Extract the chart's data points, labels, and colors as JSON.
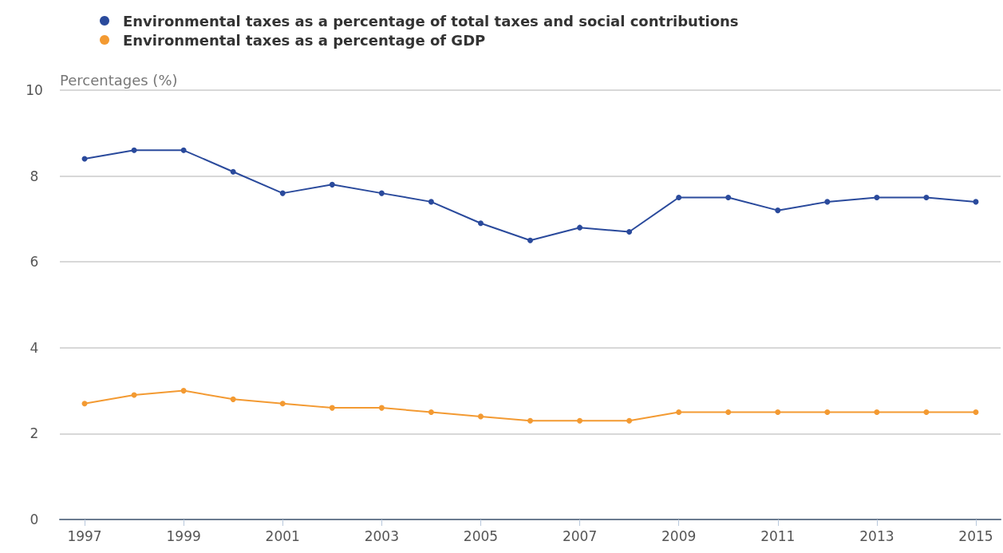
{
  "chart_data": {
    "type": "line",
    "ylabel": "Percentages (%)",
    "categories": [
      "1997",
      null,
      "1999",
      null,
      "2001",
      null,
      "2003",
      null,
      "2005",
      null,
      "2007",
      null,
      "2009",
      null,
      "2011",
      null,
      "2013",
      null,
      "2015"
    ],
    "series": [
      {
        "name": "Environmental taxes as a percentage of total taxes and social contributions",
        "color": "#2a4a9c",
        "values": [
          8.4,
          8.6,
          8.6,
          8.1,
          7.6,
          7.8,
          7.6,
          7.4,
          6.9,
          6.5,
          6.8,
          6.7,
          7.5,
          7.5,
          7.2,
          7.4,
          7.5,
          7.5,
          7.4
        ]
      },
      {
        "name": "Environmental taxes as a percentage of GDP",
        "color": "#f39a32",
        "values": [
          2.7,
          2.9,
          3.0,
          2.8,
          2.7,
          2.6,
          2.6,
          2.5,
          2.4,
          2.3,
          2.3,
          2.3,
          2.5,
          2.5,
          2.5,
          2.5,
          2.5,
          2.5,
          2.5
        ]
      }
    ],
    "ylim": [
      0,
      10
    ],
    "yticks": [
      0,
      2,
      4,
      6,
      8,
      10
    ],
    "grid": "y",
    "legend": "top left",
    "marker": "circle",
    "line_style": "solid"
  }
}
